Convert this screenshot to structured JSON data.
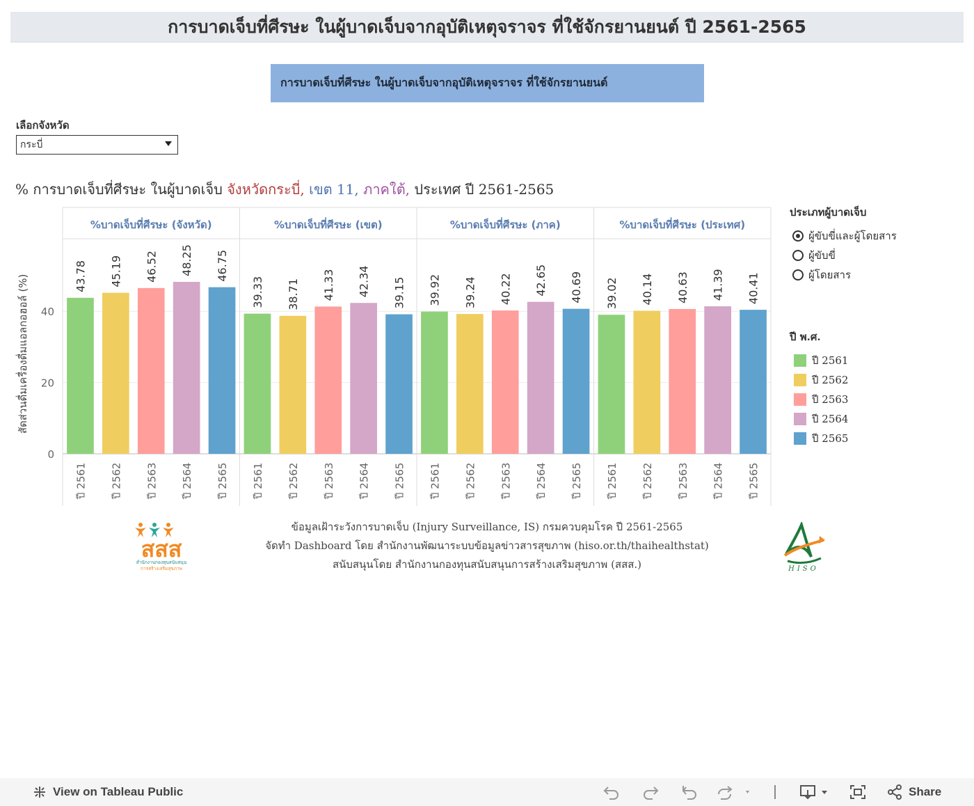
{
  "banner_title": "การบาดเจ็บที่ศีรษะ ในผู้บาดเจ็บจากอุบัติเหตุจราจร ที่ใช้จักรยานยนต์ ปี 2561-2565",
  "subtitle": "การบาดเจ็บที่ศีรษะ ในผู้บาดเจ็บจากอุบัติเหตุจราจร ที่ใช้จักรยานยนต์",
  "filter": {
    "label": "เลือกจังหวัด",
    "value": "กระบี่"
  },
  "chart_heading": {
    "prefix": "% การบาดเจ็บที่ศีรษะ ในผู้บาดเจ็บ ",
    "province": "จังหวัดกระบี่,",
    "region": " เขต 11,",
    "zone": " ภาคใต้,",
    "suffix": " ประเทศ ปี 2561-2565"
  },
  "legend_type": {
    "title": "ประเภทผู้บาดเจ็บ",
    "options": [
      "ผู้ขับขี่และผู้โดยสาร",
      "ผู้ขับขี่",
      "ผู้โดยสาร"
    ],
    "selected": 0
  },
  "legend_year": {
    "title": "ปี พ.ศ.",
    "items": [
      "ปี 2561",
      "ปี 2562",
      "ปี 2563",
      "ปี 2564",
      "ปี 2565"
    ]
  },
  "chart_data": {
    "type": "bar",
    "ylabel": "สัดส่วนดื่มเครื่องดื่มแอลกอฮอล์ (%)",
    "ylim": [
      0,
      60
    ],
    "yticks": [
      0,
      20,
      40
    ],
    "categories": [
      "ปี 2561",
      "ปี 2562",
      "ปี 2563",
      "ปี 2564",
      "ปี 2565"
    ],
    "colors": [
      "#8fd17a",
      "#f0cd5f",
      "#ff9e9b",
      "#d4a6c8",
      "#5fa2ce"
    ],
    "panels": [
      {
        "name": "%บาดเจ็บที่ศีรษะ (จังหวัด)",
        "values": [
          43.78,
          45.19,
          46.52,
          48.25,
          46.75
        ]
      },
      {
        "name": "%บาดเจ็บที่ศีรษะ (เขต)",
        "values": [
          39.33,
          38.71,
          41.33,
          42.34,
          39.15
        ]
      },
      {
        "name": "%บาดเจ็บที่ศีรษะ (ภาค)",
        "values": [
          39.92,
          39.24,
          40.22,
          42.65,
          40.69
        ]
      },
      {
        "name": "%บาดเจ็บที่ศีรษะ (ประเทศ)",
        "values": [
          39.02,
          40.14,
          40.63,
          41.39,
          40.41
        ]
      }
    ]
  },
  "footer": {
    "line1": "ข้อมูลเฝ้าระวังการบาดเจ็บ (Injury Surveillance, IS) กรมควบคุมโรค ปี 2561-2565",
    "line2": "จัดทำ Dashboard โดย สำนักงานพัฒนาระบบข้อมูลข่าวสารสุขภาพ (hiso.or.th/thaihealthstat)",
    "line3": "สนับสนุนโดย สำนักงานกองทุนสนับสนุนการสร้างเสริมสุขภาพ (สสส.)"
  },
  "logos": {
    "sss_text": "สสส",
    "sss_sub1": "สำนักงานกองทุนสนับสนุน",
    "sss_sub2": "การสร้างเสริมสุขภาพ",
    "hiso_text": "HISO"
  },
  "toolbar": {
    "view_label": "View on Tableau Public",
    "share_label": "Share"
  }
}
